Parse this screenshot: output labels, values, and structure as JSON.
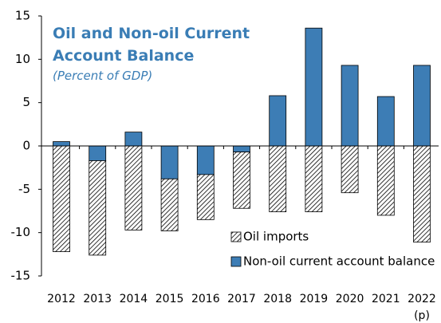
{
  "chart_data": {
    "type": "stacked_bar",
    "title": "Oil and Non-oil Current Account Balance",
    "subtitle": "(Percent of GDP)",
    "categories": [
      "2012",
      "2013",
      "2014",
      "2015",
      "2016",
      "2017",
      "2018",
      "2019",
      "2020",
      "2021",
      "2022\n(p)"
    ],
    "series": [
      {
        "name": "Oil imports",
        "color": "#000000",
        "hatch": true,
        "values": [
          -12.2,
          -10.9,
          -9.7,
          -6.0,
          -5.2,
          -6.5,
          -7.6,
          -7.6,
          -5.4,
          -8.0,
          -11.1
        ]
      },
      {
        "name": "Non-oil current account balance",
        "color": "#3d7db5",
        "hatch": false,
        "values": [
          0.5,
          -1.7,
          1.6,
          -3.8,
          -3.3,
          -0.7,
          5.8,
          13.6,
          9.3,
          5.7,
          9.3
        ]
      }
    ],
    "ylim": [
      -15,
      15
    ],
    "yticks": [
      -15,
      -10,
      -5,
      0,
      5,
      10,
      15
    ],
    "grid": false,
    "legend": "lower right"
  }
}
